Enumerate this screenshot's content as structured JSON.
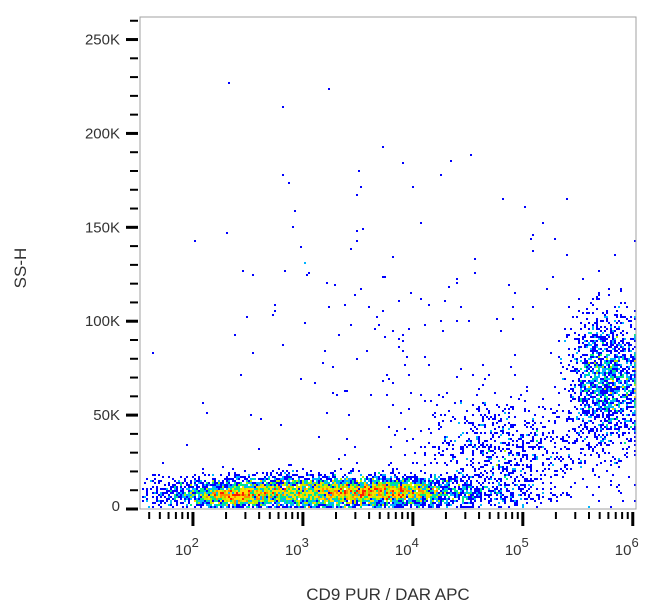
{
  "chart_data": {
    "type": "scatter",
    "subtype": "flow-cytometry density dot plot",
    "xlabel": "CD9 PUR / DAR APC",
    "ylabel": "SS-H",
    "x_scale": "log",
    "xlim": [
      33,
      1070000
    ],
    "x_ticks": [
      {
        "value": 100,
        "base": "10",
        "exp": "2"
      },
      {
        "value": 1000,
        "base": "10",
        "exp": "3"
      },
      {
        "value": 10000,
        "base": "10",
        "exp": "4"
      },
      {
        "value": 100000,
        "base": "10",
        "exp": "5"
      },
      {
        "value": 1000000,
        "base": "10",
        "exp": "6"
      }
    ],
    "y_scale": "linear",
    "ylim": [
      0,
      262000
    ],
    "y_ticks": [
      {
        "value": 0,
        "label": "0"
      },
      {
        "value": 50000,
        "label": "50K"
      },
      {
        "value": 100000,
        "label": "100K"
      },
      {
        "value": 150000,
        "label": "150K"
      },
      {
        "value": 200000,
        "label": "200K"
      },
      {
        "value": 250000,
        "label": "250K"
      }
    ],
    "grid": false,
    "legend": "none",
    "density_colors": [
      "#0000ff",
      "#00b4ff",
      "#00e68c",
      "#b4f000",
      "#ffdc00",
      "#ff8c00",
      "#ff1e00"
    ],
    "populations": [
      {
        "name": "CD9-negative main band",
        "x_log_center": 3.2,
        "x_log_sd": 0.75,
        "y_center": 9000,
        "y_sd": 4500,
        "count": 5200
      },
      {
        "name": "low band hotspot",
        "x_log_center": 2.35,
        "x_log_sd": 0.22,
        "y_center": 7500,
        "y_sd": 2500,
        "count": 900
      },
      {
        "name": "mid band hotspot",
        "x_log_center": 3.75,
        "x_log_sd": 0.25,
        "y_center": 10000,
        "y_sd": 3000,
        "count": 900
      },
      {
        "name": "transition",
        "x_log_center": 4.8,
        "x_log_sd": 0.35,
        "y_center": 32000,
        "y_sd": 14000,
        "count": 700
      },
      {
        "name": "CD9-positive cluster",
        "x_log_center": 5.75,
        "x_log_sd": 0.17,
        "y_center": 68000,
        "y_sd": 18000,
        "count": 1600
      },
      {
        "name": "sparse events",
        "x_log_center": 3.8,
        "x_log_sd": 1.0,
        "y_center": 70000,
        "y_sd": 55000,
        "count": 220
      }
    ]
  }
}
